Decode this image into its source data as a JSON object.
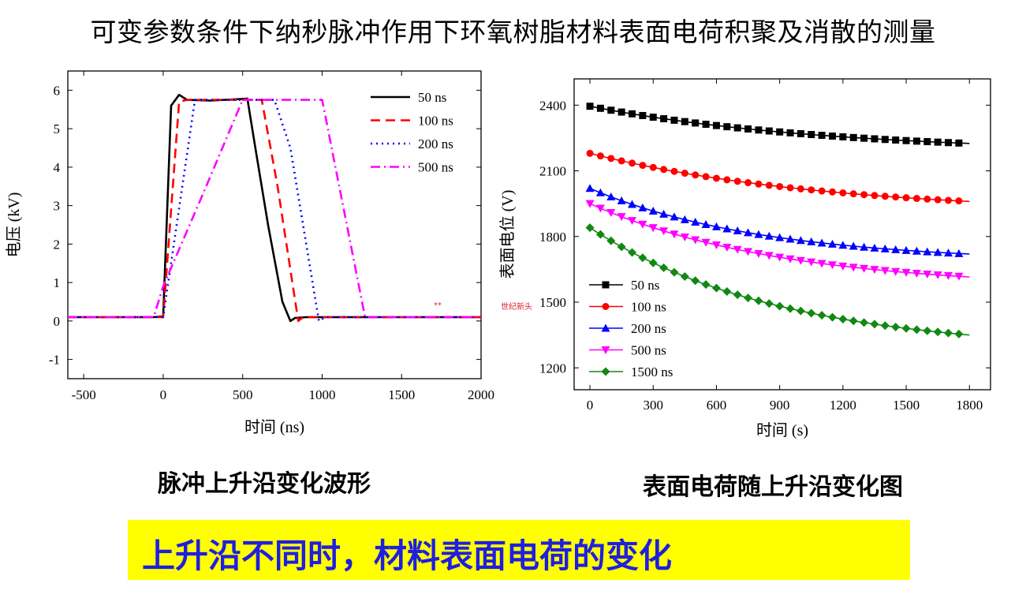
{
  "title": "可变参数条件下纳秒脉冲作用下环氧树脂材料表面电荷积聚及消散的测量",
  "left_caption": "脉冲上升沿变化波形",
  "right_caption": "表面电荷随上升沿变化图",
  "banner": {
    "text": "上升沿不同时，材料表面电荷的变化",
    "bg": "#ffff00",
    "fg": "#1f1fe0"
  },
  "watermark": {
    "text": "世纪新头",
    "mark": "**"
  },
  "chart_data": [
    {
      "type": "line",
      "xlabel": "时间 (ns)",
      "ylabel": "电压 (kV)",
      "xlim": [
        -600,
        2000
      ],
      "ylim": [
        -1.5,
        6.5
      ],
      "xticks": [
        -500,
        0,
        500,
        1000,
        1500,
        2000
      ],
      "yticks": [
        -1,
        0,
        1,
        2,
        3,
        4,
        5,
        6
      ],
      "legend_position": "top-right",
      "series": [
        {
          "name": "50 ns",
          "color": "#000000",
          "dash": "solid",
          "x": [
            -600,
            -60,
            0,
            50,
            100,
            150,
            300,
            530,
            580,
            660,
            750,
            800,
            830,
            900,
            1000,
            1500,
            2000
          ],
          "y": [
            0.1,
            0.1,
            0.12,
            5.6,
            5.88,
            5.75,
            5.73,
            5.78,
            4.5,
            2.5,
            0.5,
            0.0,
            0.08,
            0.1,
            0.1,
            0.1,
            0.1
          ]
        },
        {
          "name": "100 ns",
          "color": "#ff0000",
          "dash": "dashed",
          "x": [
            -600,
            -60,
            0,
            100,
            150,
            400,
            620,
            720,
            850,
            880,
            1000,
            2000
          ],
          "y": [
            0.1,
            0.1,
            0.1,
            5.7,
            5.75,
            5.75,
            5.75,
            3.5,
            0.0,
            0.1,
            0.1,
            0.1
          ]
        },
        {
          "name": "200 ns",
          "color": "#0000ff",
          "dash": "dotted",
          "x": [
            -600,
            -60,
            0,
            200,
            250,
            600,
            700,
            800,
            980,
            1020,
            2000
          ],
          "y": [
            0.1,
            0.1,
            0.1,
            5.75,
            5.75,
            5.75,
            5.75,
            4.5,
            0.0,
            0.1,
            0.1
          ]
        },
        {
          "name": "500 ns",
          "color": "#ff00ff",
          "dash": "dashdot",
          "x": [
            -600,
            -60,
            0,
            250,
            500,
            600,
            1000,
            1270,
            1300,
            2000
          ],
          "y": [
            0.1,
            0.1,
            0.9,
            3.3,
            5.75,
            5.75,
            5.75,
            0.1,
            0.1,
            0.1
          ]
        }
      ]
    },
    {
      "type": "line",
      "xlabel": "时间 (s)",
      "ylabel": "表面电位 (V)",
      "xlim": [
        -75,
        1900
      ],
      "ylim": [
        1100,
        2520
      ],
      "xticks": [
        0,
        300,
        600,
        900,
        1200,
        1500,
        1800
      ],
      "yticks": [
        1200,
        1500,
        1800,
        2100,
        2400
      ],
      "legend_position": "bottom-left",
      "series": [
        {
          "name": "50 ns",
          "color": "#000000",
          "marker": "square",
          "start": 2395,
          "end": 2225,
          "k": 1.6
        },
        {
          "name": "100 ns",
          "color": "#ff0000",
          "marker": "circle",
          "start": 2180,
          "end": 1960,
          "k": 1.6
        },
        {
          "name": "200 ns",
          "color": "#0000ff",
          "marker": "triangle-up",
          "start": 2020,
          "end": 1720,
          "k": 2.2
        },
        {
          "name": "500 ns",
          "color": "#ff00ff",
          "marker": "triangle-down",
          "start": 1950,
          "end": 1615,
          "k": 2.0
        },
        {
          "name": "1500 ns",
          "color": "#118811",
          "marker": "diamond",
          "start": 1840,
          "end": 1350,
          "k": 2.0
        }
      ]
    }
  ]
}
